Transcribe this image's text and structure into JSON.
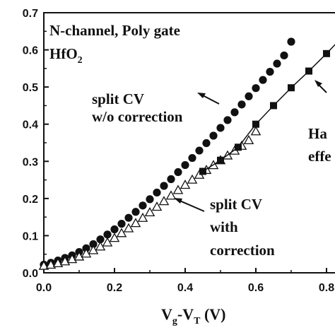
{
  "chart_data": {
    "type": "scatter",
    "xlabel": {
      "main_v": "V",
      "sub_g": "g",
      "dash": "-V",
      "sub_t": "T",
      "unit": " (V)"
    },
    "ylabel": "",
    "xlim": [
      0.0,
      0.84
    ],
    "ylim": [
      0.0,
      0.7
    ],
    "x_ticks": [
      "0.0",
      "0.2",
      "0.4",
      "0.6",
      "0.8"
    ],
    "y_ticks": [
      "0.0",
      "0.1",
      "0.2",
      "0.3",
      "0.4",
      "0.5",
      "0.6",
      "0.7"
    ],
    "title_lines": [
      "N-channel, Poly gate",
      "HfO"
    ],
    "title_sub": "2",
    "series": [
      {
        "name": "split CV w/o correction",
        "marker": "filled-circle",
        "x": [
          0.0,
          0.02,
          0.04,
          0.06,
          0.08,
          0.1,
          0.12,
          0.14,
          0.16,
          0.18,
          0.2,
          0.22,
          0.24,
          0.26,
          0.28,
          0.3,
          0.32,
          0.34,
          0.36,
          0.38,
          0.4,
          0.42,
          0.44,
          0.46,
          0.48,
          0.5,
          0.52,
          0.54,
          0.56,
          0.58,
          0.6,
          0.62,
          0.64,
          0.66,
          0.68,
          0.7
        ],
        "y": [
          0.022,
          0.027,
          0.033,
          0.04,
          0.047,
          0.056,
          0.066,
          0.077,
          0.09,
          0.103,
          0.117,
          0.132,
          0.148,
          0.164,
          0.181,
          0.198,
          0.216,
          0.234,
          0.252,
          0.271,
          0.29,
          0.309,
          0.329,
          0.349,
          0.369,
          0.39,
          0.411,
          0.432,
          0.453,
          0.475,
          0.497,
          0.519,
          0.541,
          0.563,
          0.585,
          0.622
        ]
      },
      {
        "name": "split CV with correction",
        "marker": "open-triangle",
        "x": [
          0.0,
          0.02,
          0.04,
          0.06,
          0.08,
          0.1,
          0.12,
          0.14,
          0.16,
          0.18,
          0.2,
          0.22,
          0.24,
          0.26,
          0.28,
          0.3,
          0.32,
          0.34,
          0.36,
          0.38,
          0.4,
          0.42,
          0.44,
          0.46,
          0.48,
          0.5,
          0.52,
          0.54,
          0.56,
          0.58,
          0.6
        ],
        "y": [
          0.018,
          0.021,
          0.025,
          0.03,
          0.036,
          0.043,
          0.051,
          0.06,
          0.07,
          0.081,
          0.093,
          0.106,
          0.119,
          0.133,
          0.147,
          0.162,
          0.177,
          0.192,
          0.207,
          0.222,
          0.236,
          0.25,
          0.263,
          0.276,
          0.289,
          0.302,
          0.315,
          0.328,
          0.341,
          0.356,
          0.38
        ]
      },
      {
        "name": "Hall effect",
        "marker": "filled-square",
        "connected": true,
        "x": [
          0.45,
          0.5,
          0.55,
          0.6,
          0.65,
          0.7,
          0.75,
          0.8,
          0.85
        ],
        "y": [
          0.273,
          0.303,
          0.338,
          0.4,
          0.45,
          0.498,
          0.543,
          0.59,
          0.64
        ]
      }
    ],
    "annotations": [
      {
        "id": "hfo",
        "lines": [
          "split CV",
          "w/o correction"
        ]
      },
      {
        "id": "corr",
        "lines": [
          "split CV",
          "with",
          "correction"
        ]
      },
      {
        "id": "hall",
        "lines": [
          "Ha",
          "effe"
        ]
      }
    ]
  }
}
